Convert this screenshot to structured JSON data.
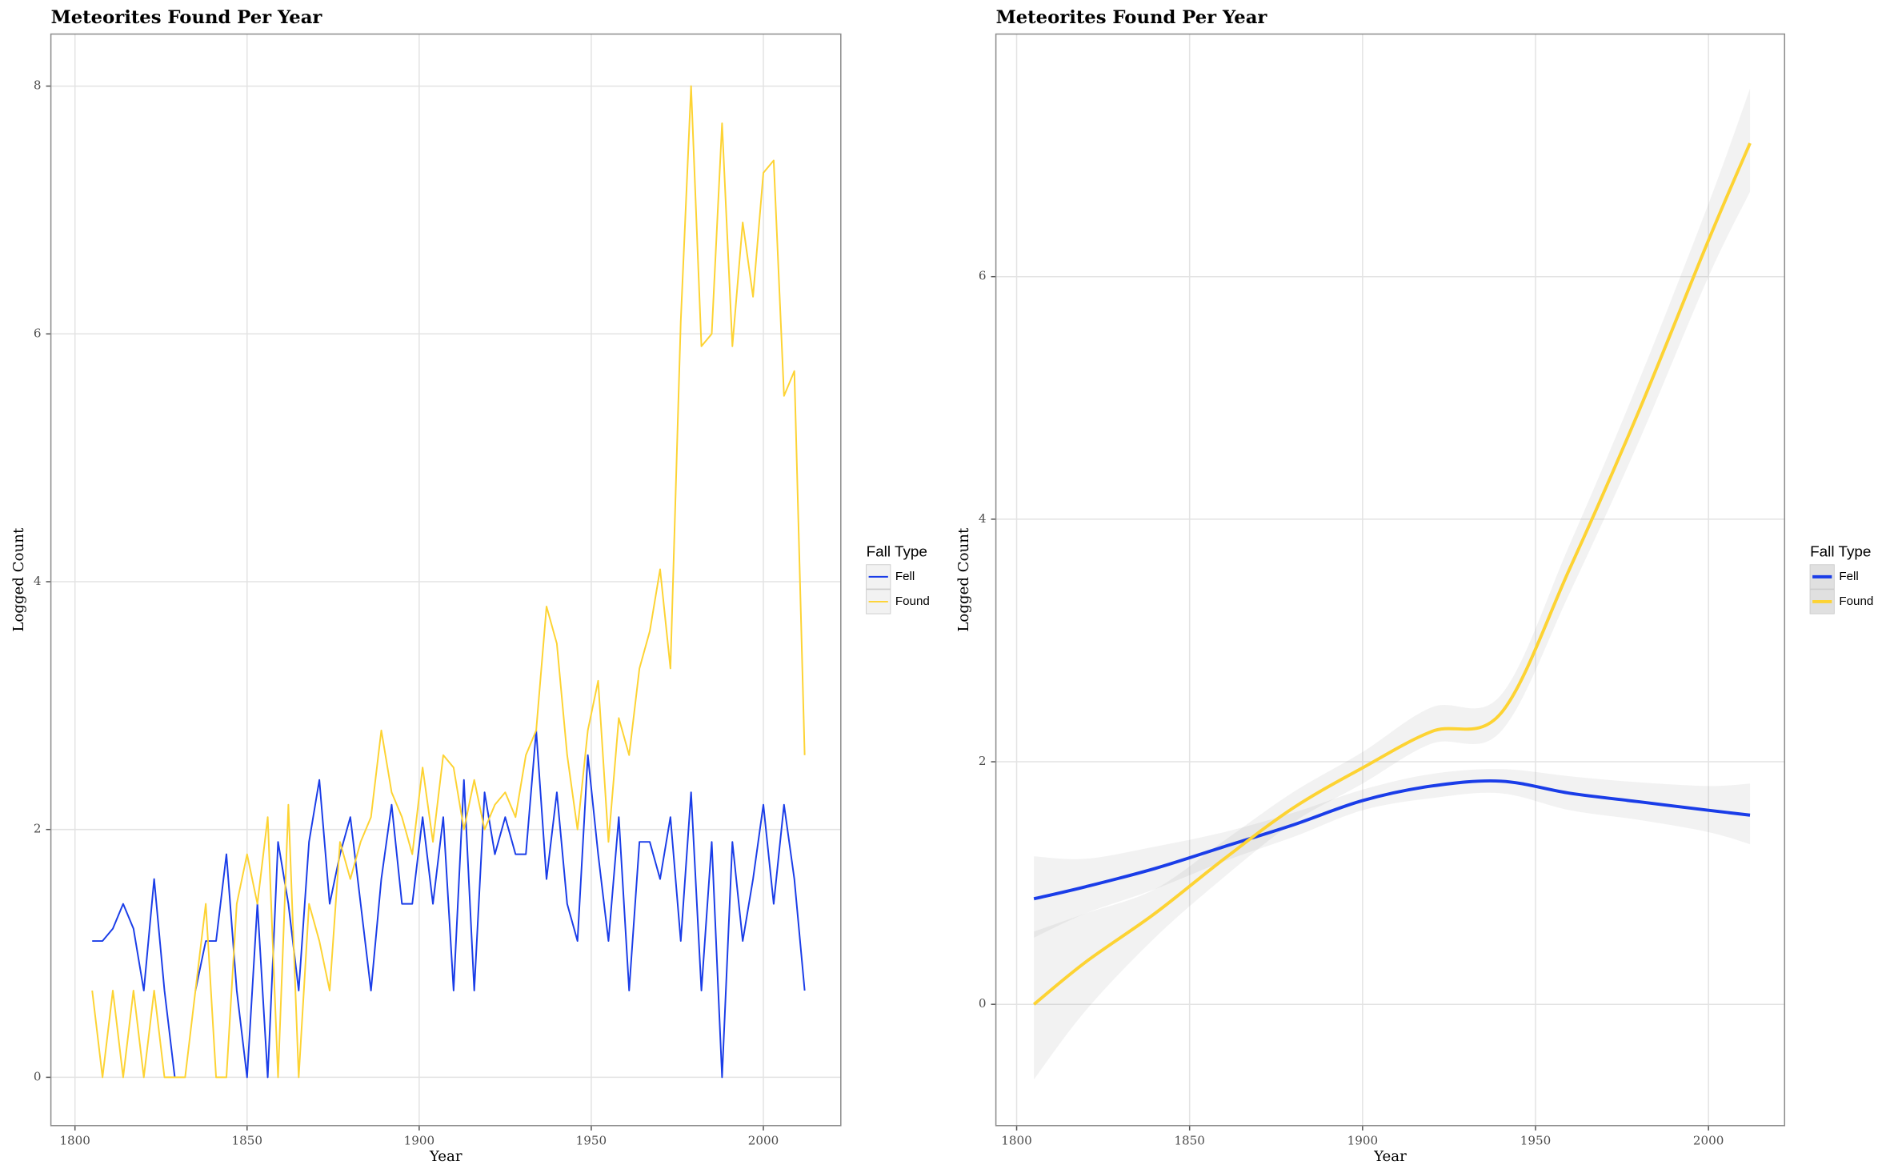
{
  "chart_data": [
    {
      "type": "line",
      "title": "Meteorites Found Per Year",
      "xlabel": "Year",
      "ylabel": "Logged Count",
      "legend_title": "Fall Type",
      "legend": "right",
      "grid": true,
      "xlim": [
        1793,
        2022.5
      ],
      "ylim": [
        -0.39,
        8.42
      ],
      "xticks": [
        1800,
        1850,
        1900,
        1950,
        2000
      ],
      "yticks": [
        0,
        2,
        4,
        6,
        8
      ],
      "x": [
        1805,
        1808,
        1811,
        1814,
        1817,
        1820,
        1823,
        1826,
        1829,
        1832,
        1835,
        1838,
        1841,
        1844,
        1847,
        1850,
        1853,
        1856,
        1859,
        1862,
        1865,
        1868,
        1871,
        1874,
        1877,
        1880,
        1883,
        1886,
        1889,
        1892,
        1895,
        1898,
        1901,
        1904,
        1907,
        1910,
        1913,
        1916,
        1919,
        1922,
        1925,
        1928,
        1931,
        1934,
        1937,
        1940,
        1943,
        1946,
        1949,
        1952,
        1955,
        1958,
        1961,
        1964,
        1967,
        1970,
        1973,
        1976,
        1979,
        1982,
        1985,
        1988,
        1991,
        1994,
        1997,
        2000,
        2003,
        2006,
        2009,
        2012
      ],
      "series": [
        {
          "name": "Fell",
          "color": "#1a3de8",
          "values": [
            1.1,
            1.1,
            1.2,
            1.4,
            1.2,
            0.7,
            1.6,
            0.7,
            0,
            null,
            0.7,
            1.1,
            1.1,
            1.8,
            0.7,
            0,
            1.4,
            0,
            1.9,
            1.4,
            0.7,
            1.9,
            2.4,
            1.4,
            1.8,
            2.1,
            1.4,
            0.7,
            1.6,
            2.2,
            1.4,
            1.4,
            2.1,
            1.4,
            2.1,
            0.7,
            2.4,
            0.7,
            2.3,
            1.8,
            2.1,
            1.8,
            1.8,
            2.8,
            1.6,
            2.3,
            1.4,
            1.1,
            2.6,
            1.8,
            1.1,
            2.1,
            0.7,
            1.9,
            1.9,
            1.6,
            2.1,
            1.1,
            2.3,
            0.7,
            1.9,
            0,
            1.9,
            1.1,
            1.6,
            2.2,
            1.4,
            2.2,
            1.6,
            0.7
          ]
        },
        {
          "name": "Found",
          "color": "#fdd333",
          "values": [
            0.7,
            0,
            0.7,
            0,
            0.7,
            0,
            0.7,
            0,
            0,
            0,
            0.7,
            1.4,
            0,
            0,
            1.4,
            1.8,
            1.4,
            2.1,
            0,
            2.2,
            0,
            1.4,
            1.1,
            0.7,
            1.9,
            1.6,
            1.9,
            2.1,
            2.8,
            2.3,
            2.1,
            1.8,
            2.5,
            1.9,
            2.6,
            2.5,
            2.0,
            2.4,
            2.0,
            2.2,
            2.3,
            2.1,
            2.6,
            2.8,
            3.8,
            3.5,
            2.6,
            2.0,
            2.8,
            3.2,
            1.9,
            2.9,
            2.6,
            3.3,
            3.6,
            4.1,
            3.3,
            6.1,
            8.0,
            5.9,
            6.0,
            7.7,
            5.9,
            6.9,
            6.3,
            7.3,
            7.4,
            5.5,
            5.7,
            2.6
          ]
        }
      ]
    },
    {
      "type": "smooth",
      "title": "Meteorites Found Per Year",
      "xlabel": "Year",
      "ylabel": "Logged Count",
      "legend_title": "Fall Type",
      "legend": "right",
      "grid": true,
      "xlim": [
        1794,
        2022
      ],
      "ylim": [
        -1.0,
        8.0
      ],
      "xticks": [
        1800,
        1850,
        1900,
        1950,
        2000
      ],
      "yticks": [
        0,
        2,
        4,
        6
      ],
      "x": [
        1805,
        1820,
        1840,
        1860,
        1880,
        1900,
        1920,
        1940,
        1960,
        1980,
        2000,
        2012
      ],
      "series": [
        {
          "name": "Fell",
          "color": "#1a3de8",
          "values": [
            0.87,
            0.97,
            1.12,
            1.3,
            1.48,
            1.68,
            1.8,
            1.84,
            1.74,
            1.67,
            1.6,
            1.56
          ],
          "lower": [
            0.55,
            0.75,
            0.95,
            1.18,
            1.38,
            1.6,
            1.7,
            1.74,
            1.6,
            1.52,
            1.42,
            1.32
          ],
          "upper": [
            1.22,
            1.2,
            1.3,
            1.42,
            1.58,
            1.77,
            1.9,
            1.94,
            1.88,
            1.83,
            1.8,
            1.82
          ]
        },
        {
          "name": "Found",
          "color": "#fdd333",
          "values": [
            0,
            0.35,
            0.75,
            1.2,
            1.62,
            1.95,
            2.25,
            2.4,
            3.6,
            4.9,
            6.3,
            7.1
          ],
          "lower": [
            -0.62,
            -0.05,
            0.55,
            1.05,
            1.5,
            1.82,
            2.15,
            2.25,
            3.4,
            4.65,
            6.0,
            6.7
          ],
          "upper": [
            0.6,
            0.75,
            0.95,
            1.35,
            1.75,
            2.08,
            2.45,
            2.55,
            3.8,
            5.15,
            6.6,
            7.55
          ]
        }
      ]
    }
  ]
}
